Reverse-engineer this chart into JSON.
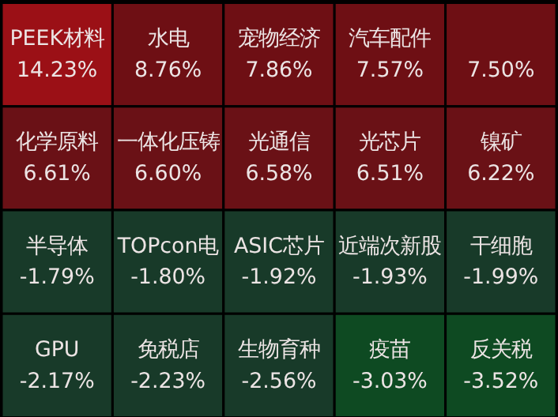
{
  "chart_data": {
    "type": "other",
    "categories": [
      "PEEK材料",
      "水电",
      "宠物经济",
      "汽车配件",
      null,
      "化学原料",
      "一体化压铸",
      "光通信",
      "光芯片",
      "镍矿",
      "半导体",
      "TOPcon电",
      "ASIC芯片",
      "近端次新股",
      "干细胞",
      "GPU",
      "免税店",
      "生物育种",
      "疫苗",
      "反关税"
    ],
    "values": [
      14.23,
      8.76,
      7.86,
      7.57,
      7.5,
      6.61,
      6.6,
      6.58,
      6.51,
      6.22,
      -1.79,
      -1.8,
      -1.92,
      -1.93,
      -1.99,
      -2.17,
      -2.23,
      -2.56,
      -3.03,
      -3.52
    ],
    "value_labels": [
      "14.23%",
      "8.76%",
      "7.86%",
      "7.57%",
      "7.50%",
      "6.61%",
      "6.60%",
      "6.58%",
      "6.51%",
      "6.22%",
      "-1.79%",
      "-1.80%",
      "-1.92%",
      "-1.93%",
      "-1.99%",
      "-2.17%",
      "-2.23%",
      "-2.56%",
      "-3.03%",
      "-3.52%"
    ],
    "colors": [
      "#9b1016",
      "#6e0f14",
      "#6e0f14",
      "#6e0f14",
      "#6e0f14",
      "#6a1116",
      "#6a1116",
      "#6a1116",
      "#6a1116",
      "#6a1116",
      "#183a29",
      "#183a29",
      "#183a29",
      "#183a29",
      "#183a29",
      "#183a29",
      "#183a29",
      "#183a29",
      "#0e4a22",
      "#0e4a22"
    ]
  }
}
